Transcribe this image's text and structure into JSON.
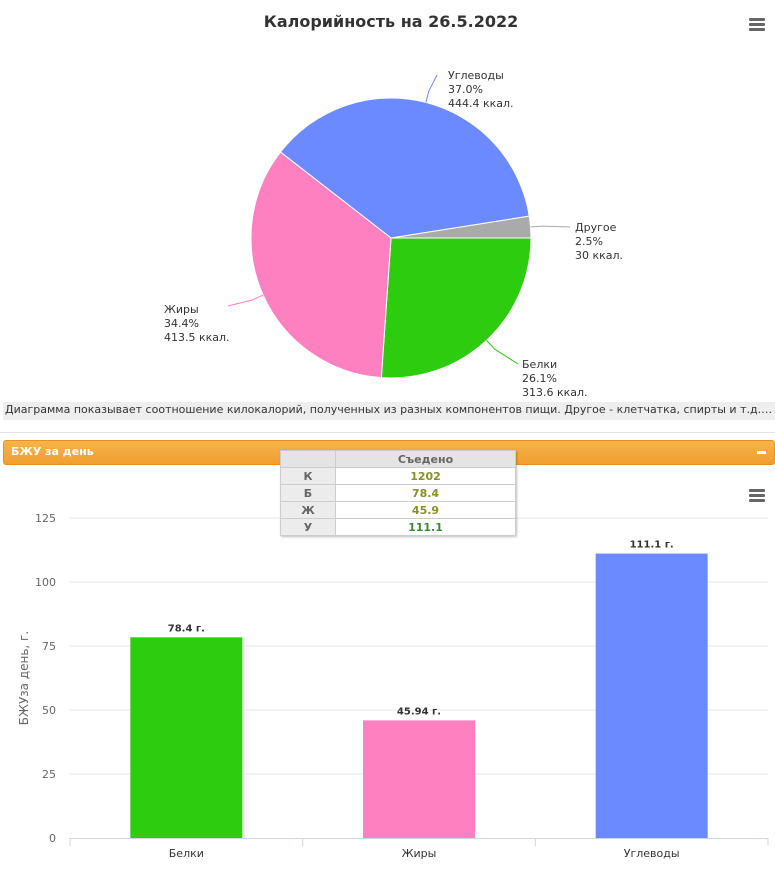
{
  "pie_panel": {
    "menu_icon": "hamburger-menu-icon"
  },
  "caption": "Диаграмма показывает соотношение килокалорий, полученных из разных компонентов пищи. Другое - клетчатка, спирты и т.д. Подробнее тут...",
  "bju_panel": {
    "header": "БЖУ за день",
    "collapse_icon": "minus-icon",
    "menu_icon": "hamburger-menu-icon"
  },
  "eaten_table": {
    "header": "Съедено",
    "rows": [
      {
        "label": "К",
        "value": "1202"
      },
      {
        "label": "Б",
        "value": "78.4"
      },
      {
        "label": "Ж",
        "value": "45.9"
      },
      {
        "label": "У",
        "value": "111.1"
      }
    ]
  },
  "colors": {
    "carbs": "#6b8aff",
    "other": "#aaaaaa",
    "protein": "#2ecc0e",
    "fat": "#ff80c0",
    "header_orange": "#f5a83c"
  },
  "chart_data": [
    {
      "type": "pie",
      "title": "Калорийность на 26.5.2022",
      "slices": [
        {
          "name": "Углеводы",
          "percent_label": "37.0%",
          "kcal_label": "444.4 ккал.",
          "value": 444.4,
          "color": "#6b8aff"
        },
        {
          "name": "Другое",
          "percent_label": "2.5%",
          "kcal_label": "30 ккал.",
          "value": 30,
          "color": "#aaaaaa"
        },
        {
          "name": "Белки",
          "percent_label": "26.1%",
          "kcal_label": "313.6 ккал.",
          "value": 313.6,
          "color": "#2ecc0e"
        },
        {
          "name": "Жиры",
          "percent_label": "34.4%",
          "kcal_label": "413.5 ккал.",
          "value": 413.5,
          "color": "#ff80c0"
        }
      ]
    },
    {
      "type": "bar",
      "categories": [
        "Белки",
        "Жиры",
        "Углеводы"
      ],
      "values": [
        78.4,
        45.94,
        111.1
      ],
      "data_labels": [
        "78.4 г.",
        "45.94 г.",
        "111.1 г."
      ],
      "colors": [
        "#2ecc0e",
        "#ff80c0",
        "#6b8aff"
      ],
      "ylabel": "БЖУза день, г.",
      "ylim": [
        0,
        125
      ],
      "yticks": [
        "0",
        "25",
        "50",
        "75",
        "100",
        "125"
      ],
      "ytick_values": [
        0,
        25,
        50,
        75,
        100,
        125
      ],
      "grid": true
    }
  ]
}
